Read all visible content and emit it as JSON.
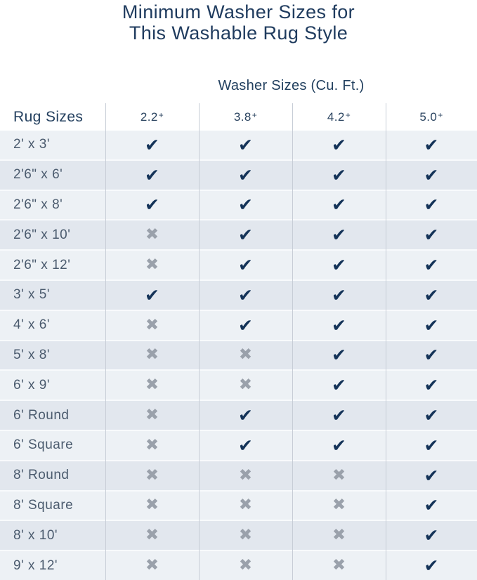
{
  "title": {
    "line1": "Minimum Washer Sizes for",
    "line2": "This Washable Rug Style"
  },
  "icons": {
    "check": "✔",
    "cross": "✖"
  },
  "colors": {
    "heading_navy": "#1f3b5e",
    "check_navy": "#143358",
    "cross_gray": "#9aa1ab",
    "row_light": "#edf1f5",
    "row_dark": "#e2e7ee",
    "divider": "#c7cdd6"
  },
  "chart_data": {
    "type": "table",
    "title": "Minimum Washer Sizes for This Washable Rug Style",
    "group_header": "Washer Sizes (Cu. Ft.)",
    "row_header": "Rug Sizes",
    "columns": [
      "2.2+",
      "3.8+",
      "4.2+",
      "5.0+"
    ],
    "rows": [
      {
        "label": "2' x 3'",
        "fits": [
          true,
          true,
          true,
          true
        ]
      },
      {
        "label": "2'6\" x 6'",
        "fits": [
          true,
          true,
          true,
          true
        ]
      },
      {
        "label": "2'6\" x 8'",
        "fits": [
          true,
          true,
          true,
          true
        ]
      },
      {
        "label": "2'6\" x 10'",
        "fits": [
          false,
          true,
          true,
          true
        ]
      },
      {
        "label": "2'6\" x 12'",
        "fits": [
          false,
          true,
          true,
          true
        ]
      },
      {
        "label": "3' x 5'",
        "fits": [
          true,
          true,
          true,
          true
        ]
      },
      {
        "label": "4' x 6'",
        "fits": [
          false,
          true,
          true,
          true
        ]
      },
      {
        "label": "5' x 8'",
        "fits": [
          false,
          false,
          true,
          true
        ]
      },
      {
        "label": "6' x 9'",
        "fits": [
          false,
          false,
          true,
          true
        ]
      },
      {
        "label": "6' Round",
        "fits": [
          false,
          true,
          true,
          true
        ]
      },
      {
        "label": "6' Square",
        "fits": [
          false,
          true,
          true,
          true
        ]
      },
      {
        "label": "8' Round",
        "fits": [
          false,
          false,
          false,
          true
        ]
      },
      {
        "label": "8' Square",
        "fits": [
          false,
          false,
          false,
          true
        ]
      },
      {
        "label": "8' x 10'",
        "fits": [
          false,
          false,
          false,
          true
        ]
      },
      {
        "label": "9' x 12'",
        "fits": [
          false,
          false,
          false,
          true
        ]
      }
    ]
  }
}
